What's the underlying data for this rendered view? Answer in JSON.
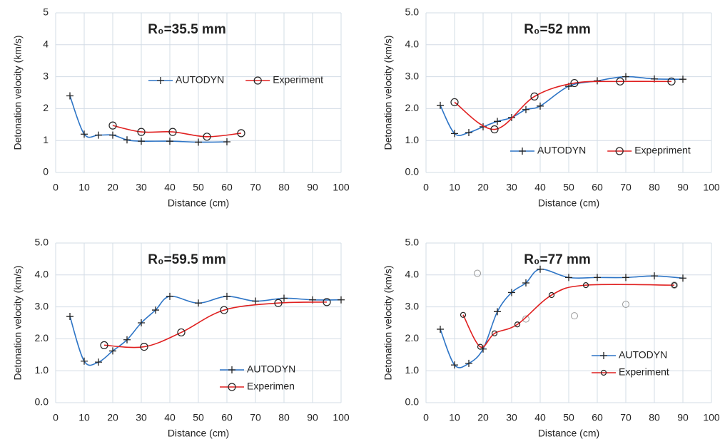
{
  "chart_data": [
    {
      "type": "line",
      "title": "R₀=35.5 mm",
      "x_label": "Distance (cm)",
      "y_label": "Detonation velocity (km/s)",
      "xlim": [
        0,
        100
      ],
      "xticks": [
        0,
        10,
        20,
        30,
        40,
        50,
        60,
        70,
        80,
        90,
        100
      ],
      "ylim": [
        0,
        5
      ],
      "yticks": [
        0,
        1,
        2,
        3,
        4,
        5
      ],
      "grid": true,
      "smooth": true,
      "legend": "upper center",
      "series": [
        {
          "name": "AUTODYN",
          "color": "#2e75c6",
          "marker": "plus",
          "x": [
            5,
            10,
            15,
            20,
            25,
            30,
            40,
            50,
            60
          ],
          "values": [
            2.4,
            1.2,
            1.17,
            1.17,
            1.02,
            0.98,
            0.98,
            0.95,
            0.96
          ]
        },
        {
          "name": "Experiment",
          "color": "#e02020",
          "marker": "circle",
          "x": [
            20,
            30,
            41,
            53,
            65
          ],
          "values": [
            1.47,
            1.27,
            1.27,
            1.12,
            1.23
          ]
        }
      ]
    },
    {
      "type": "line",
      "title": "R₀=52 mm",
      "x_label": "Distance (cm)",
      "y_label": "Detonation velocity (km/s)",
      "xlim": [
        0,
        100
      ],
      "xticks": [
        0,
        10,
        20,
        30,
        40,
        50,
        60,
        70,
        80,
        90,
        100
      ],
      "ylim": [
        0,
        5
      ],
      "yticks": [
        {
          "value": 0,
          "label": "0.0"
        },
        {
          "value": 1,
          "label": "1.0"
        },
        {
          "value": 2,
          "label": "2.0"
        },
        {
          "value": 3,
          "label": "3.0"
        },
        {
          "value": 4,
          "label": "4.0"
        },
        {
          "value": 5,
          "label": "5.0"
        }
      ],
      "grid": true,
      "smooth": true,
      "legend": "lower right",
      "series": [
        {
          "name": "AUTODYN",
          "color": "#2e75c6",
          "marker": "plus",
          "x": [
            5,
            10,
            15,
            20,
            25,
            30,
            35,
            40,
            50,
            60,
            70,
            80,
            90
          ],
          "values": [
            2.1,
            1.22,
            1.25,
            1.43,
            1.6,
            1.72,
            1.97,
            2.08,
            2.7,
            2.87,
            3.0,
            2.93,
            2.92
          ]
        },
        {
          "name": "Expepriment",
          "color": "#e02020",
          "marker": "circle",
          "x": [
            10,
            24,
            38,
            52,
            68,
            86
          ],
          "values": [
            2.2,
            1.35,
            2.38,
            2.8,
            2.85,
            2.85
          ]
        }
      ]
    },
    {
      "type": "line",
      "title": "R₀=59.5 mm",
      "x_label": "Distance (cm)",
      "y_label": "Detonation velocity (km/s)",
      "xlim": [
        0,
        100
      ],
      "xticks": [
        0,
        10,
        20,
        30,
        40,
        50,
        60,
        70,
        80,
        90,
        100
      ],
      "ylim": [
        0,
        5
      ],
      "yticks": [
        {
          "value": 0,
          "label": "0.0"
        },
        {
          "value": 1,
          "label": "1.0"
        },
        {
          "value": 2,
          "label": "2.0"
        },
        {
          "value": 3,
          "label": "3.0"
        },
        {
          "value": 4,
          "label": "4.0"
        },
        {
          "value": 5,
          "label": "5.0"
        }
      ],
      "grid": true,
      "smooth": true,
      "legend": "lower right",
      "series": [
        {
          "name": "AUTODYN",
          "color": "#2e75c6",
          "marker": "plus",
          "x": [
            5,
            10,
            15,
            20,
            25,
            30,
            35,
            40,
            50,
            60,
            70,
            80,
            90,
            100
          ],
          "values": [
            2.7,
            1.3,
            1.27,
            1.62,
            1.97,
            2.5,
            2.9,
            3.33,
            3.12,
            3.33,
            3.18,
            3.27,
            3.22,
            3.22
          ]
        },
        {
          "name": "Experimen",
          "color": "#e02020",
          "marker": "circle",
          "x": [
            17,
            31,
            44,
            59,
            78,
            95
          ],
          "values": [
            1.8,
            1.75,
            2.2,
            2.9,
            3.12,
            3.15
          ]
        }
      ]
    },
    {
      "type": "line",
      "title": "R₀=77 mm",
      "x_label": "Distance (cm)",
      "y_label": "Detonation velocity (km/s)",
      "xlim": [
        0,
        100
      ],
      "xticks": [
        0,
        10,
        20,
        30,
        40,
        50,
        60,
        70,
        80,
        90,
        100
      ],
      "ylim": [
        0,
        5
      ],
      "yticks": [
        {
          "value": 0,
          "label": "0.0"
        },
        {
          "value": 1,
          "label": "1.0"
        },
        {
          "value": 2,
          "label": "2.0"
        },
        {
          "value": 3,
          "label": "3.0"
        },
        {
          "value": 4,
          "label": "4.0"
        },
        {
          "value": 5,
          "label": "5.0"
        }
      ],
      "grid": true,
      "smooth": true,
      "legend": "lower right",
      "series": [
        {
          "name": "AUTODYN",
          "color": "#2e75c6",
          "marker": "plus",
          "x": [
            5,
            10,
            15,
            20,
            25,
            30,
            35,
            40,
            50,
            60,
            70,
            80,
            90
          ],
          "values": [
            2.3,
            1.18,
            1.23,
            1.68,
            2.85,
            3.45,
            3.75,
            4.18,
            3.92,
            3.92,
            3.92,
            3.97,
            3.9
          ]
        },
        {
          "name": "Experiment",
          "color": "#e02020",
          "marker": "circle-small",
          "x": [
            13,
            19,
            24,
            32,
            44,
            56,
            87
          ],
          "values": [
            2.75,
            1.75,
            2.17,
            2.45,
            3.37,
            3.68,
            3.68
          ]
        }
      ],
      "scatter_points": {
        "color": "#999999",
        "x": [
          18,
          35,
          52,
          70,
          87
        ],
        "values": [
          4.05,
          2.62,
          2.72,
          3.08,
          3.68
        ]
      }
    }
  ]
}
